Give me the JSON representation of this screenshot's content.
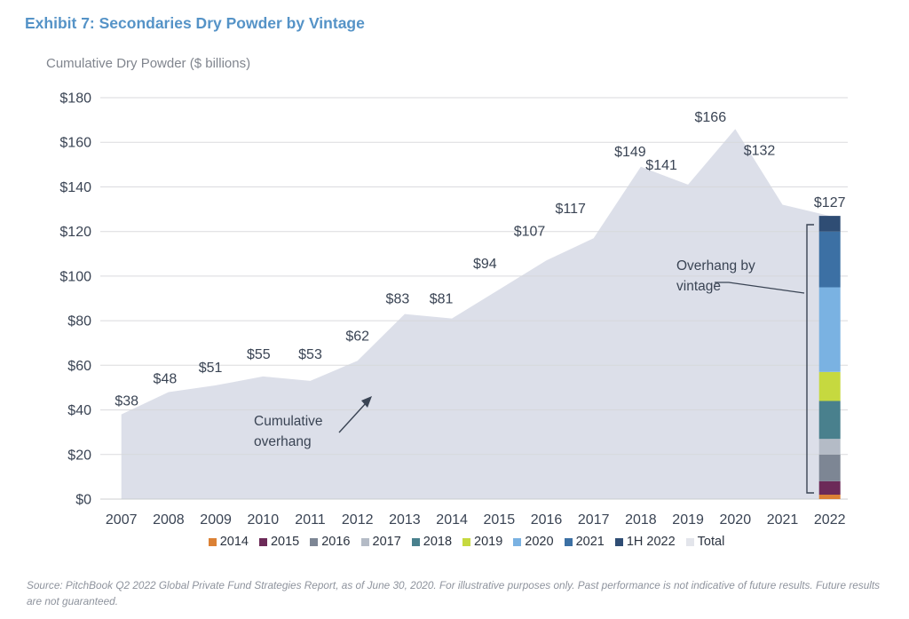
{
  "title": "Exhibit 7: Secondaries Dry Powder by Vintage",
  "axis_title": "Cumulative Dry Powder ($ billions)",
  "annotations": {
    "cumulative_overhang": "Cumulative overhang",
    "overhang_by_vintage": "Overhang by vintage"
  },
  "source_note": "Source: PitchBook Q2 2022 Global Private Fund Strategies Report, as of June 30, 2020. For illustrative purposes only. Past performance is not indicative of future results. Future results are not guaranteed.",
  "colors": {
    "title_blue": "#5593C7",
    "axis_title_gray": "#80858E",
    "text_dark": "#3A4454",
    "grid": "#D6D7DA",
    "baseline": "#C8CACD",
    "area_fill": "#DCDFE9",
    "source_gray": "#8E939D"
  },
  "chart_data": {
    "type": "area",
    "title": "Exhibit 7: Secondaries Dry Powder by Vintage",
    "ylabel": "Cumulative Dry Powder ($ billions)",
    "categories": [
      2007,
      2008,
      2009,
      2010,
      2011,
      2012,
      2013,
      2014,
      2015,
      2016,
      2017,
      2018,
      2019,
      2020,
      2021,
      2022
    ],
    "values": [
      38,
      48,
      51,
      55,
      53,
      62,
      83,
      81,
      94,
      107,
      117,
      149,
      141,
      166,
      132,
      127
    ],
    "value_labels": [
      "$38",
      "$48",
      "$51",
      "$55",
      "$53",
      "$62",
      "$83",
      "$81",
      "$94",
      "$107",
      "$117",
      "$149",
      "$141",
      "$166",
      "$132",
      "$127"
    ],
    "ylim": [
      0,
      180
    ],
    "ytick_step": 20,
    "ytick_prefix": "$",
    "grid": true,
    "legend_position": "bottom",
    "series_name_area": "Cumulative overhang (Total)",
    "bar_2022": {
      "label": "Overhang by vintage",
      "total": 127,
      "total_label": "$127",
      "segments": [
        {
          "name": "2014",
          "value": 2,
          "color": "#DB8135"
        },
        {
          "name": "2015",
          "value": 6,
          "color": "#6C2A58"
        },
        {
          "name": "2016",
          "value": 12,
          "color": "#7D8694"
        },
        {
          "name": "2017",
          "value": 7,
          "color": "#B4BBC6"
        },
        {
          "name": "2018",
          "value": 17,
          "color": "#49808D"
        },
        {
          "name": "2019",
          "value": 13,
          "color": "#C6D93F"
        },
        {
          "name": "2020",
          "value": 38,
          "color": "#7AB2E2"
        },
        {
          "name": "2021",
          "value": 25,
          "color": "#3C70A4"
        },
        {
          "name": "1H 2022",
          "value": 7,
          "color": "#2F4D74"
        }
      ]
    },
    "legend_total_entry": {
      "label": "Total",
      "color": "#E3E5EB"
    }
  }
}
